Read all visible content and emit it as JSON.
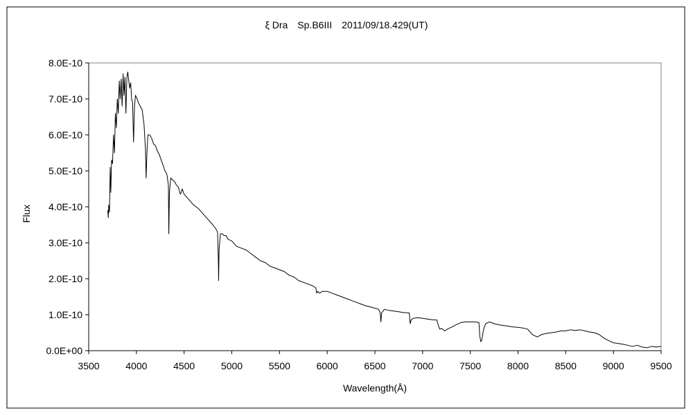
{
  "chart_data": {
    "type": "line",
    "title": "ξ Dra　Sp.B6III　2011/09/18.429(UT)",
    "xlabel": "Wavelength(Å)",
    "ylabel": "Flux",
    "xlim": [
      3500,
      9500
    ],
    "ylim": [
      0,
      8e-10
    ],
    "grid": false,
    "legend": "none",
    "line_color": "#000000",
    "x_ticks": [
      3500,
      4000,
      4500,
      5000,
      5500,
      6000,
      6500,
      7000,
      7500,
      8000,
      8500,
      9000,
      9500
    ],
    "x_tick_labels": [
      "3500",
      "4000",
      "4500",
      "5000",
      "5500",
      "6000",
      "6500",
      "7000",
      "7500",
      "8000",
      "8500",
      "9000",
      "9500"
    ],
    "y_ticks": [
      0,
      1e-10,
      2e-10,
      3e-10,
      4e-10,
      5e-10,
      6e-10,
      7e-10,
      8e-10
    ],
    "y_tick_labels": [
      "0.0E+00",
      "1.0E-10",
      "2.0E-10",
      "3.0E-10",
      "4.0E-10",
      "5.0E-10",
      "6.0E-10",
      "7.0E-10",
      "8.0E-10"
    ],
    "series": [
      {
        "points": [
          [
            3700,
            3.9e-10
          ],
          [
            3705,
            3.7e-10
          ],
          [
            3710,
            4.05e-10
          ],
          [
            3718,
            3.85e-10
          ],
          [
            3725,
            5.1e-10
          ],
          [
            3732,
            4.4e-10
          ],
          [
            3740,
            5.3e-10
          ],
          [
            3750,
            5.2e-10
          ],
          [
            3760,
            6e-10
          ],
          [
            3770,
            5.5e-10
          ],
          [
            3780,
            6.6e-10
          ],
          [
            3790,
            6.2e-10
          ],
          [
            3800,
            7e-10
          ],
          [
            3810,
            6.6e-10
          ],
          [
            3820,
            7.5e-10
          ],
          [
            3830,
            7e-10
          ],
          [
            3840,
            7.55e-10
          ],
          [
            3850,
            6.8e-10
          ],
          [
            3860,
            7.7e-10
          ],
          [
            3870,
            7.1e-10
          ],
          [
            3880,
            7.6e-10
          ],
          [
            3890,
            6.6e-10
          ],
          [
            3900,
            7.6e-10
          ],
          [
            3910,
            7.75e-10
          ],
          [
            3920,
            7.5e-10
          ],
          [
            3930,
            7.3e-10
          ],
          [
            3940,
            7.45e-10
          ],
          [
            3950,
            7e-10
          ],
          [
            3960,
            6.9e-10
          ],
          [
            3970,
            5.8e-10
          ],
          [
            3980,
            6.8e-10
          ],
          [
            3990,
            7.1e-10
          ],
          [
            4000,
            7.05e-10
          ],
          [
            4020,
            6.9e-10
          ],
          [
            4040,
            6.8e-10
          ],
          [
            4060,
            6.7e-10
          ],
          [
            4080,
            6.3e-10
          ],
          [
            4095,
            5.6e-10
          ],
          [
            4102,
            4.8e-10
          ],
          [
            4110,
            5.5e-10
          ],
          [
            4120,
            6e-10
          ],
          [
            4140,
            6e-10
          ],
          [
            4160,
            5.9e-10
          ],
          [
            4180,
            5.75e-10
          ],
          [
            4200,
            5.7e-10
          ],
          [
            4220,
            5.55e-10
          ],
          [
            4240,
            5.45e-10
          ],
          [
            4260,
            5.3e-10
          ],
          [
            4280,
            5.15e-10
          ],
          [
            4300,
            5e-10
          ],
          [
            4320,
            4.9e-10
          ],
          [
            4335,
            4.6e-10
          ],
          [
            4340,
            3.25e-10
          ],
          [
            4346,
            4.4e-10
          ],
          [
            4360,
            4.8e-10
          ],
          [
            4380,
            4.75e-10
          ],
          [
            4400,
            4.7e-10
          ],
          [
            4420,
            4.6e-10
          ],
          [
            4440,
            4.55e-10
          ],
          [
            4460,
            4.35e-10
          ],
          [
            4471,
            4.4e-10
          ],
          [
            4480,
            4.5e-10
          ],
          [
            4500,
            4.35e-10
          ],
          [
            4550,
            4.2e-10
          ],
          [
            4600,
            4.05e-10
          ],
          [
            4650,
            3.95e-10
          ],
          [
            4700,
            3.8e-10
          ],
          [
            4750,
            3.65e-10
          ],
          [
            4800,
            3.5e-10
          ],
          [
            4830,
            3.4e-10
          ],
          [
            4850,
            3.3e-10
          ],
          [
            4858,
            2.6e-10
          ],
          [
            4862,
            1.95e-10
          ],
          [
            4866,
            2.8e-10
          ],
          [
            4880,
            3.25e-10
          ],
          [
            4900,
            3.25e-10
          ],
          [
            4920,
            3.2e-10
          ],
          [
            4940,
            3.2e-10
          ],
          [
            4960,
            3.1e-10
          ],
          [
            5000,
            3.05e-10
          ],
          [
            5050,
            2.9e-10
          ],
          [
            5100,
            2.85e-10
          ],
          [
            5150,
            2.8e-10
          ],
          [
            5200,
            2.7e-10
          ],
          [
            5250,
            2.6e-10
          ],
          [
            5300,
            2.5e-10
          ],
          [
            5350,
            2.45e-10
          ],
          [
            5400,
            2.35e-10
          ],
          [
            5450,
            2.3e-10
          ],
          [
            5500,
            2.25e-10
          ],
          [
            5550,
            2.2e-10
          ],
          [
            5600,
            2.1e-10
          ],
          [
            5650,
            2.05e-10
          ],
          [
            5700,
            1.95e-10
          ],
          [
            5750,
            1.9e-10
          ],
          [
            5800,
            1.85e-10
          ],
          [
            5850,
            1.8e-10
          ],
          [
            5880,
            1.75e-10
          ],
          [
            5890,
            1.6e-10
          ],
          [
            5900,
            1.65e-10
          ],
          [
            5920,
            1.6e-10
          ],
          [
            5950,
            1.65e-10
          ],
          [
            6000,
            1.65e-10
          ],
          [
            6050,
            1.6e-10
          ],
          [
            6100,
            1.55e-10
          ],
          [
            6150,
            1.5e-10
          ],
          [
            6200,
            1.45e-10
          ],
          [
            6250,
            1.4e-10
          ],
          [
            6300,
            1.35e-10
          ],
          [
            6350,
            1.3e-10
          ],
          [
            6400,
            1.25e-10
          ],
          [
            6450,
            1.22e-10
          ],
          [
            6500,
            1.18e-10
          ],
          [
            6540,
            1.15e-10
          ],
          [
            6555,
            1.05e-10
          ],
          [
            6563,
            8e-11
          ],
          [
            6570,
            1.05e-10
          ],
          [
            6600,
            1.15e-10
          ],
          [
            6650,
            1.12e-10
          ],
          [
            6700,
            1.1e-10
          ],
          [
            6750,
            1.08e-10
          ],
          [
            6800,
            1.06e-10
          ],
          [
            6860,
            1.05e-10
          ],
          [
            6870,
            7.5e-11
          ],
          [
            6880,
            8.5e-11
          ],
          [
            6900,
            9e-11
          ],
          [
            6950,
            9.2e-11
          ],
          [
            7000,
            9e-11
          ],
          [
            7050,
            8.8e-11
          ],
          [
            7100,
            8.6e-11
          ],
          [
            7150,
            8.5e-11
          ],
          [
            7165,
            7e-11
          ],
          [
            7180,
            6e-11
          ],
          [
            7200,
            6.2e-11
          ],
          [
            7230,
            5.5e-11
          ],
          [
            7260,
            6e-11
          ],
          [
            7300,
            6.5e-11
          ],
          [
            7350,
            7.2e-11
          ],
          [
            7400,
            7.8e-11
          ],
          [
            7450,
            8e-11
          ],
          [
            7500,
            8e-11
          ],
          [
            7550,
            8e-11
          ],
          [
            7590,
            7.8e-11
          ],
          [
            7600,
            4e-11
          ],
          [
            7610,
            2.5e-11
          ],
          [
            7620,
            3e-11
          ],
          [
            7640,
            6e-11
          ],
          [
            7660,
            7.5e-11
          ],
          [
            7700,
            8e-11
          ],
          [
            7750,
            7.5e-11
          ],
          [
            7800,
            7.2e-11
          ],
          [
            7850,
            7e-11
          ],
          [
            7900,
            6.8e-11
          ],
          [
            7950,
            6.6e-11
          ],
          [
            8000,
            6.5e-11
          ],
          [
            8050,
            6.3e-11
          ],
          [
            8100,
            6e-11
          ],
          [
            8150,
            4.5e-11
          ],
          [
            8200,
            3.8e-11
          ],
          [
            8250,
            4.5e-11
          ],
          [
            8300,
            4.8e-11
          ],
          [
            8350,
            5e-11
          ],
          [
            8400,
            5.2e-11
          ],
          [
            8450,
            5.5e-11
          ],
          [
            8500,
            5.5e-11
          ],
          [
            8550,
            5.8e-11
          ],
          [
            8600,
            5.6e-11
          ],
          [
            8650,
            5.8e-11
          ],
          [
            8700,
            5.5e-11
          ],
          [
            8750,
            5.2e-11
          ],
          [
            8800,
            5e-11
          ],
          [
            8850,
            4.5e-11
          ],
          [
            8900,
            3.5e-11
          ],
          [
            8950,
            2.8e-11
          ],
          [
            9000,
            2.2e-11
          ],
          [
            9050,
            2e-11
          ],
          [
            9100,
            1.8e-11
          ],
          [
            9150,
            1.5e-11
          ],
          [
            9200,
            1.2e-11
          ],
          [
            9250,
            1.5e-11
          ],
          [
            9300,
            1e-11
          ],
          [
            9350,
            8e-12
          ],
          [
            9400,
            1.2e-11
          ],
          [
            9450,
            1e-11
          ],
          [
            9500,
            1.2e-11
          ]
        ]
      }
    ]
  }
}
